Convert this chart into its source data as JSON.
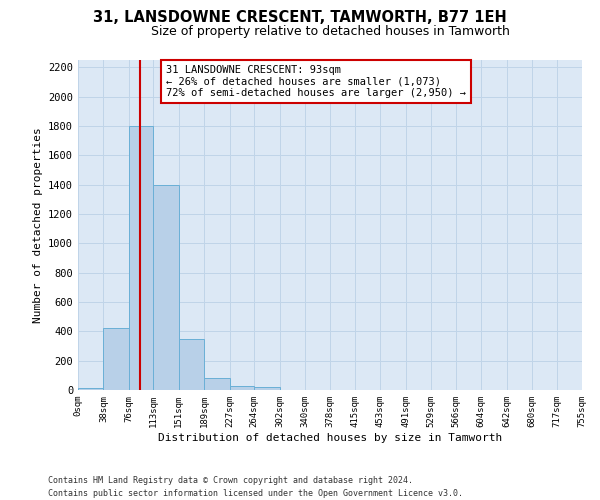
{
  "title1": "31, LANSDOWNE CRESCENT, TAMWORTH, B77 1EH",
  "title2": "Size of property relative to detached houses in Tamworth",
  "xlabel": "Distribution of detached houses by size in Tamworth",
  "ylabel": "Number of detached properties",
  "bin_edges": [
    0,
    38,
    76,
    113,
    151,
    189,
    227,
    264,
    302,
    340,
    378,
    415,
    453,
    491,
    529,
    566,
    604,
    642,
    680,
    717,
    755
  ],
  "bar_heights": [
    15,
    420,
    1800,
    1400,
    350,
    80,
    30,
    20,
    0,
    0,
    0,
    0,
    0,
    0,
    0,
    0,
    0,
    0,
    0,
    0
  ],
  "bar_color": "#b8d0e8",
  "bar_edge_color": "#6aafd6",
  "grid_color": "#c0d4e8",
  "background_color": "#dce8f5",
  "property_size": 93,
  "red_line_color": "#cc0000",
  "annotation_line1": "31 LANSDOWNE CRESCENT: 93sqm",
  "annotation_line2": "← 26% of detached houses are smaller (1,073)",
  "annotation_line3": "72% of semi-detached houses are larger (2,950) →",
  "annotation_box_color": "#ffffff",
  "annotation_border_color": "#cc0000",
  "ylim": [
    0,
    2250
  ],
  "yticks": [
    0,
    200,
    400,
    600,
    800,
    1000,
    1200,
    1400,
    1600,
    1800,
    2000,
    2200
  ],
  "footer_line1": "Contains HM Land Registry data © Crown copyright and database right 2024.",
  "footer_line2": "Contains public sector information licensed under the Open Government Licence v3.0."
}
